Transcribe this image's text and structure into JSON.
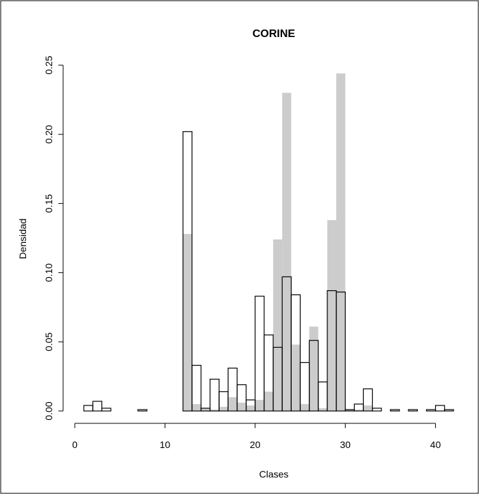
{
  "chart_data": {
    "type": "bar",
    "title": "CORINE",
    "xlabel": "Clases",
    "ylabel": "Densidad",
    "xlim": [
      0,
      43
    ],
    "ylim": [
      0,
      0.25
    ],
    "x_ticks": [
      0,
      10,
      20,
      30,
      40
    ],
    "y_ticks": [
      0.0,
      0.05,
      0.1,
      0.15,
      0.2,
      0.25
    ],
    "x_tick_labels": [
      "0",
      "10",
      "20",
      "30",
      "40"
    ],
    "y_tick_labels": [
      "0.00",
      "0.05",
      "0.10",
      "0.15",
      "0.20",
      "0.25"
    ],
    "bins": [
      [
        1,
        2
      ],
      [
        2,
        3
      ],
      [
        3,
        4
      ],
      [
        4,
        5
      ],
      [
        5,
        6
      ],
      [
        6,
        7
      ],
      [
        7,
        8
      ],
      [
        8,
        9
      ],
      [
        9,
        10
      ],
      [
        10,
        11
      ],
      [
        11,
        12
      ],
      [
        12,
        13
      ],
      [
        13,
        14
      ],
      [
        14,
        15
      ],
      [
        15,
        16
      ],
      [
        16,
        17
      ],
      [
        17,
        18
      ],
      [
        18,
        19
      ],
      [
        19,
        20
      ],
      [
        20,
        21
      ],
      [
        21,
        22
      ],
      [
        22,
        23
      ],
      [
        23,
        24
      ],
      [
        24,
        25
      ],
      [
        25,
        26
      ],
      [
        26,
        27
      ],
      [
        27,
        28
      ],
      [
        28,
        29
      ],
      [
        29,
        30
      ],
      [
        30,
        31
      ],
      [
        31,
        32
      ],
      [
        32,
        33
      ],
      [
        33,
        34
      ],
      [
        34,
        35
      ],
      [
        35,
        36
      ],
      [
        36,
        37
      ],
      [
        37,
        38
      ],
      [
        38,
        39
      ],
      [
        39,
        40
      ],
      [
        40,
        41
      ],
      [
        41,
        42
      ],
      [
        42,
        43
      ]
    ],
    "series": [
      {
        "style": "gray-filled",
        "color": "#cccccc",
        "values": [
          0,
          0,
          0,
          0,
          0,
          0,
          0,
          0,
          0,
          0,
          0,
          0.128,
          0.005,
          0.002,
          0.001,
          0.003,
          0.01,
          0.006,
          0.004,
          0.008,
          0.014,
          0.124,
          0.23,
          0.048,
          0.005,
          0.061,
          0.002,
          0.138,
          0.244,
          0.001,
          0.001,
          0.004,
          0,
          0,
          0,
          0,
          0,
          0,
          0,
          0,
          0,
          0
        ]
      },
      {
        "style": "outline",
        "color": "#000000",
        "values": [
          0.004,
          0.007,
          0.002,
          0,
          0,
          0,
          0.001,
          0,
          0,
          0,
          0,
          0.202,
          0.033,
          0.002,
          0.023,
          0.014,
          0.031,
          0.019,
          0.008,
          0.083,
          0.055,
          0.046,
          0.097,
          0.084,
          0.035,
          0.051,
          0.021,
          0.087,
          0.086,
          0.001,
          0.005,
          0.016,
          0.002,
          0,
          0.001,
          0,
          0.001,
          0,
          0.001,
          0.004,
          0.001,
          0
        ]
      }
    ]
  }
}
